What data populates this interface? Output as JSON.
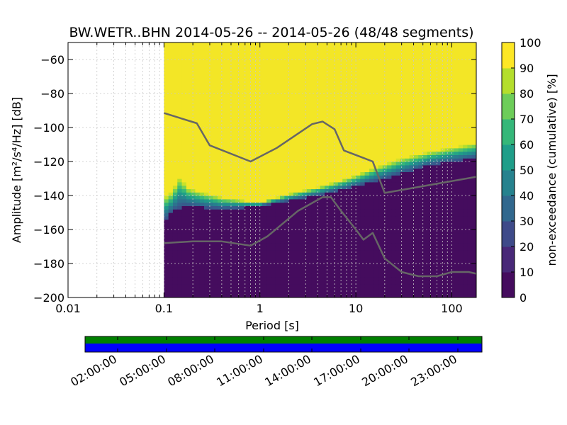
{
  "chart_data": {
    "type": "heatmap",
    "title": "BW.WETR..BHN   2014-05-26 -- 2014-05-26  (48/48 segments)",
    "xlabel": "Period [s]",
    "ylabel_text": "Amplitude [m²/s⁴/Hz] [dB]",
    "x_scale": "log",
    "xlim": [
      0.01,
      180
    ],
    "ylim": [
      -200,
      -50
    ],
    "x_ticks": [
      {
        "v": 0.01,
        "label": "0.01"
      },
      {
        "v": 0.1,
        "label": "0.1"
      },
      {
        "v": 1,
        "label": "1"
      },
      {
        "v": 10,
        "label": "10"
      },
      {
        "v": 100,
        "label": "100"
      }
    ],
    "y_ticks": [
      {
        "v": -60,
        "label": "−60"
      },
      {
        "v": -80,
        "label": "−80"
      },
      {
        "v": -100,
        "label": "−100"
      },
      {
        "v": -120,
        "label": "−120"
      },
      {
        "v": -140,
        "label": "−140"
      },
      {
        "v": -160,
        "label": "−160"
      },
      {
        "v": -180,
        "label": "−180"
      },
      {
        "v": -200,
        "label": "−200"
      }
    ],
    "grid": true,
    "colorbar": {
      "label": "non-exceedance (cumulative) [%]",
      "range": [
        0,
        100
      ],
      "colormap": "viridis",
      "ticks": [
        {
          "v": 0,
          "label": "0"
        },
        {
          "v": 10,
          "label": "10"
        },
        {
          "v": 20,
          "label": "20"
        },
        {
          "v": 30,
          "label": "30"
        },
        {
          "v": 40,
          "label": "40"
        },
        {
          "v": 50,
          "label": "50"
        },
        {
          "v": 60,
          "label": "60"
        },
        {
          "v": 70,
          "label": "70"
        },
        {
          "v": 80,
          "label": "80"
        },
        {
          "v": 90,
          "label": "90"
        },
        {
          "v": 100,
          "label": "100"
        }
      ]
    },
    "data_min_period": 0.1,
    "percentile_band": [
      {
        "x": 0.1,
        "lo": -155,
        "hi": -141
      },
      {
        "x": 0.12,
        "lo": -150,
        "hi": -138
      },
      {
        "x": 0.15,
        "lo": -147,
        "hi": -128
      },
      {
        "x": 0.17,
        "lo": -146,
        "hi": -135
      },
      {
        "x": 0.25,
        "lo": -147,
        "hi": -138
      },
      {
        "x": 0.4,
        "lo": -148,
        "hi": -141
      },
      {
        "x": 0.7,
        "lo": -147,
        "hi": -143
      },
      {
        "x": 1,
        "lo": -146,
        "hi": -144
      },
      {
        "x": 2,
        "lo": -143,
        "hi": -139
      },
      {
        "x": 4,
        "lo": -140,
        "hi": -135
      },
      {
        "x": 8,
        "lo": -136,
        "hi": -130
      },
      {
        "x": 15,
        "lo": -132,
        "hi": -124
      },
      {
        "x": 30,
        "lo": -127,
        "hi": -118
      },
      {
        "x": 60,
        "lo": -122,
        "hi": -114
      },
      {
        "x": 180,
        "lo": -118,
        "hi": -109
      }
    ],
    "series": [
      {
        "points": [
          [
            0.1,
            -91.5
          ],
          [
            0.22,
            -97.5
          ],
          [
            0.3,
            -110.5
          ],
          [
            0.8,
            -120
          ],
          [
            1.5,
            -112
          ],
          [
            3.5,
            -98
          ],
          [
            4.5,
            -96.5
          ],
          [
            6,
            -101
          ],
          [
            7.5,
            -113.5
          ],
          [
            15,
            -120
          ],
          [
            20,
            -138.5
          ],
          [
            180,
            -129
          ]
        ]
      },
      {
        "points": [
          [
            0.1,
            -168
          ],
          [
            0.2,
            -167
          ],
          [
            0.4,
            -167
          ],
          [
            0.8,
            -169.5
          ],
          [
            1.2,
            -164
          ],
          [
            2.5,
            -149
          ],
          [
            4.5,
            -141
          ],
          [
            5.5,
            -141
          ],
          [
            7,
            -149
          ],
          [
            10,
            -160
          ],
          [
            12,
            -166
          ],
          [
            15,
            -162
          ],
          [
            20,
            -177
          ],
          [
            30,
            -185
          ],
          [
            45,
            -187.5
          ],
          [
            70,
            -187.5
          ],
          [
            100,
            -185
          ],
          [
            150,
            -185
          ],
          [
            180,
            -186
          ]
        ]
      }
    ]
  },
  "time_strip": {
    "top_color": "#008000",
    "bottom_color": "#0000ff",
    "labels": [
      "02:00:00",
      "05:00:00",
      "08:00:00",
      "11:00:00",
      "14:00:00",
      "17:00:00",
      "20:00:00",
      "23:00:00"
    ]
  }
}
